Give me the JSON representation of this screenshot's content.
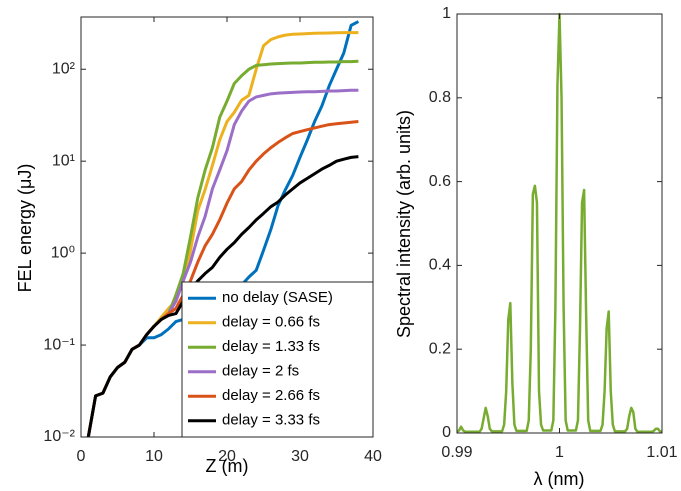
{
  "chart_data": [
    {
      "type": "line",
      "x_label": "Z (m)",
      "y_label": "FEL energy (μJ)",
      "x": [
        1,
        2,
        3,
        4,
        5,
        6,
        7,
        8,
        9,
        10,
        11,
        12,
        13,
        14,
        15,
        16,
        17,
        18,
        19,
        20,
        21,
        22,
        23,
        24,
        25,
        26,
        27,
        28,
        29,
        30,
        31,
        32,
        33,
        34,
        35,
        36,
        37,
        38
      ],
      "series": [
        {
          "name": "no delay (SASE)",
          "color": "#0072bd",
          "values": [
            0.01,
            0.028,
            0.03,
            0.045,
            0.057,
            0.065,
            0.09,
            0.1,
            0.12,
            0.12,
            0.13,
            0.15,
            0.18,
            0.19,
            0.2,
            0.21,
            0.23,
            0.3,
            0.33,
            0.35,
            0.4,
            0.45,
            0.55,
            0.65,
            1.07,
            1.8,
            3.3,
            4.9,
            7,
            11,
            17,
            27,
            40,
            66,
            100,
            150,
            300,
            330
          ]
        },
        {
          "name": "delay = 0.66 fs",
          "color": "#edb120",
          "values": [
            0.01,
            0.028,
            0.03,
            0.045,
            0.057,
            0.065,
            0.09,
            0.1,
            0.13,
            0.16,
            0.2,
            0.25,
            0.3,
            0.5,
            1.07,
            2.9,
            4.9,
            9,
            17,
            27,
            34,
            46,
            52,
            100,
            180,
            210,
            225,
            235,
            240,
            242,
            244,
            246,
            247,
            248,
            249,
            250,
            250,
            250
          ]
        },
        {
          "name": "delay = 1.33 fs",
          "color": "#77ac30",
          "values": [
            0.01,
            0.028,
            0.03,
            0.045,
            0.057,
            0.065,
            0.09,
            0.1,
            0.13,
            0.16,
            0.19,
            0.22,
            0.35,
            0.6,
            1.5,
            4,
            8,
            14,
            30,
            45,
            70,
            85,
            100,
            110,
            112,
            114,
            115,
            116,
            117,
            117,
            118,
            119,
            119,
            120,
            120,
            121,
            121,
            122
          ]
        },
        {
          "name": "delay = 2 fs",
          "color": "#9b6fc7",
          "values": [
            0.01,
            0.028,
            0.03,
            0.045,
            0.057,
            0.065,
            0.09,
            0.1,
            0.13,
            0.16,
            0.19,
            0.22,
            0.3,
            0.5,
            0.8,
            1.5,
            2.5,
            5,
            8,
            13,
            25,
            35,
            45,
            50,
            52,
            54,
            55,
            55.5,
            56,
            56.5,
            57,
            57,
            57.5,
            58,
            58,
            58.5,
            59,
            59
          ]
        },
        {
          "name": "delay = 2.66 fs",
          "color": "#d95319",
          "values": [
            0.01,
            0.028,
            0.03,
            0.045,
            0.057,
            0.065,
            0.09,
            0.1,
            0.13,
            0.16,
            0.19,
            0.22,
            0.25,
            0.35,
            0.5,
            0.8,
            1.2,
            1.6,
            2.3,
            3.5,
            5,
            6,
            8,
            10,
            12,
            14,
            16,
            18,
            20,
            21,
            22,
            23,
            24,
            25,
            25.5,
            26,
            26.5,
            27
          ]
        },
        {
          "name": "delay = 3.33 fs",
          "color": "#000000",
          "values": [
            0.01,
            0.028,
            0.03,
            0.045,
            0.057,
            0.065,
            0.09,
            0.1,
            0.13,
            0.16,
            0.19,
            0.21,
            0.22,
            0.3,
            0.4,
            0.5,
            0.6,
            0.7,
            0.9,
            1.1,
            1.3,
            1.6,
            1.9,
            2.3,
            2.7,
            3.2,
            3.6,
            4.3,
            5,
            5.8,
            6.5,
            7.3,
            8.2,
            9,
            10,
            10.5,
            11,
            11.2
          ]
        }
      ],
      "xlim": [
        0,
        40
      ],
      "xticks": [
        0,
        10,
        20,
        30,
        40
      ],
      "ylim": [
        0.01,
        370
      ],
      "yscale": "log",
      "yticks": [
        {
          "value": 0.01,
          "label": "10⁻²"
        },
        {
          "value": 0.1,
          "label": "10⁻¹"
        },
        {
          "value": 1,
          "label": "10⁰"
        },
        {
          "value": 10,
          "label": "10¹"
        },
        {
          "value": 100,
          "label": "10²"
        }
      ],
      "legend": "lower right"
    },
    {
      "type": "line",
      "x_label": "λ (nm)",
      "y_label": "Spectral intensity (arb. units)",
      "x": [
        0.99,
        0.9902,
        0.9904,
        0.9906,
        0.9908,
        0.991,
        0.9912,
        0.9914,
        0.9916,
        0.9918,
        0.992,
        0.9922,
        0.9924,
        0.9926,
        0.9928,
        0.993,
        0.9932,
        0.9934,
        0.9936,
        0.9938,
        0.994,
        0.9942,
        0.9944,
        0.9946,
        0.9948,
        0.995,
        0.9952,
        0.9954,
        0.9956,
        0.9958,
        0.996,
        0.9962,
        0.9964,
        0.9966,
        0.9968,
        0.997,
        0.9972,
        0.9974,
        0.9976,
        0.9978,
        0.998,
        0.9982,
        0.9984,
        0.9986,
        0.9988,
        0.999,
        0.9992,
        0.9994,
        0.9996,
        0.9998,
        1,
        1.0002,
        1.0004,
        1.0006,
        1.0008,
        1.001,
        1.0012,
        1.0014,
        1.0016,
        1.0018,
        1.002,
        1.0022,
        1.0024,
        1.0026,
        1.0028,
        1.003,
        1.0032,
        1.0034,
        1.0036,
        1.0038,
        1.004,
        1.0042,
        1.0044,
        1.0046,
        1.0048,
        1.005,
        1.0052,
        1.0054,
        1.0056,
        1.0058,
        1.006,
        1.0062,
        1.0064,
        1.0066,
        1.0068,
        1.007,
        1.0072,
        1.0074,
        1.0076,
        1.0078,
        1.008,
        1.0082,
        1.0084,
        1.0086,
        1.0088,
        1.009,
        1.0092,
        1.0094,
        1.0096,
        1.0098,
        1.01
      ],
      "series": [
        {
          "color": "#77ac30",
          "values": [
            0.003,
            0.006,
            0.015,
            0.006,
            0.003,
            0.003,
            0.003,
            0.003,
            0.003,
            0.003,
            0.003,
            0.003,
            0.01,
            0.035,
            0.06,
            0.04,
            0.01,
            0.004,
            0.004,
            0.004,
            0.004,
            0.004,
            0.004,
            0.02,
            0.1,
            0.27,
            0.31,
            0.12,
            0.02,
            0.005,
            0.005,
            0.005,
            0.005,
            0.005,
            0.005,
            0.03,
            0.2,
            0.57,
            0.59,
            0.55,
            0.1,
            0.02,
            0.006,
            0.006,
            0.006,
            0.006,
            0.006,
            0.03,
            0.3,
            0.83,
            1,
            0.8,
            0.3,
            0.03,
            0.006,
            0.006,
            0.006,
            0.006,
            0.006,
            0.03,
            0.25,
            0.55,
            0.58,
            0.28,
            0.03,
            0.005,
            0.005,
            0.005,
            0.005,
            0.005,
            0.005,
            0.02,
            0.1,
            0.25,
            0.29,
            0.1,
            0.02,
            0.004,
            0.004,
            0.004,
            0.004,
            0.004,
            0.004,
            0.01,
            0.04,
            0.06,
            0.05,
            0.01,
            0.003,
            0.003,
            0.003,
            0.003,
            0.003,
            0.003,
            0.003,
            0.003,
            0.005,
            0.01,
            0.01,
            0.004,
            0.003
          ]
        }
      ],
      "xlim": [
        0.99,
        1.01
      ],
      "xticks": [
        0.99,
        1,
        1.01
      ],
      "ylim": [
        0,
        1
      ],
      "yticks": [
        0,
        0.2,
        0.4,
        0.6,
        0.8,
        1
      ]
    }
  ]
}
